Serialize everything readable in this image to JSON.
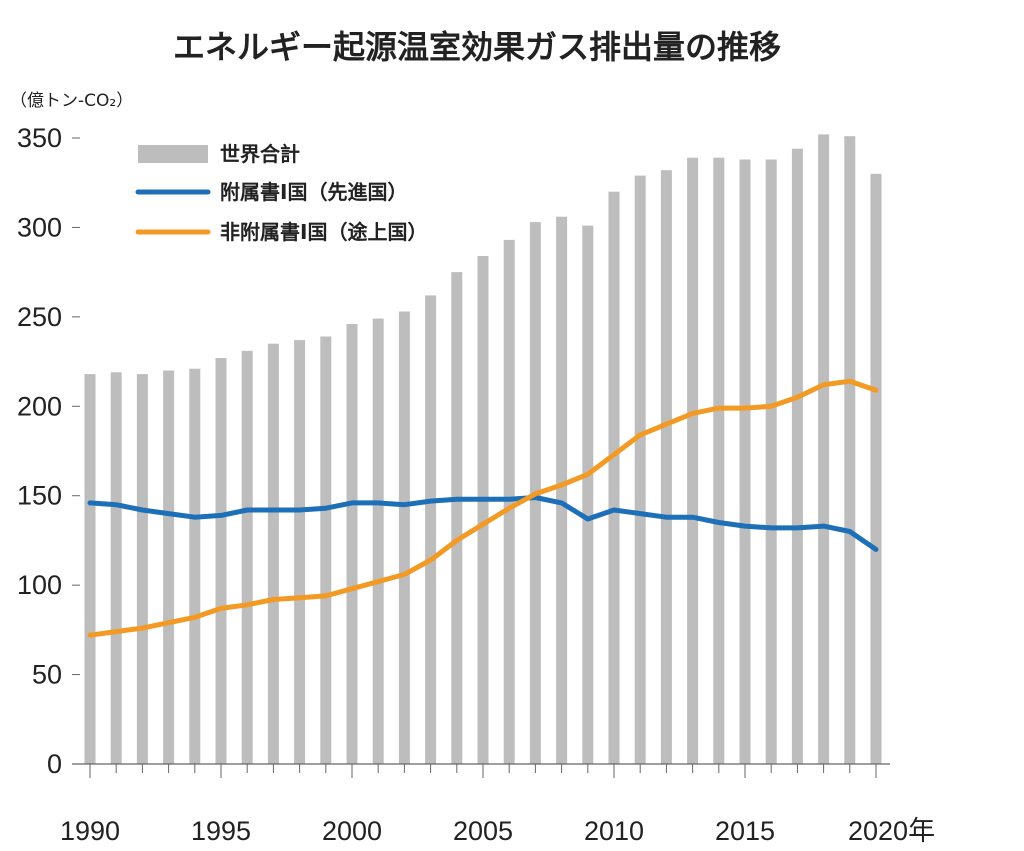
{
  "chart_data": {
    "type": "bar",
    "title": "エネルギー起源温室効果ガス排出量の推移",
    "unit_label": "（億トン-CO₂）",
    "x": [
      1990,
      1991,
      1992,
      1993,
      1994,
      1995,
      1996,
      1997,
      1998,
      1999,
      2000,
      2001,
      2002,
      2003,
      2004,
      2005,
      2006,
      2007,
      2008,
      2009,
      2010,
      2011,
      2012,
      2013,
      2014,
      2015,
      2016,
      2017,
      2018,
      2019,
      2020
    ],
    "x_tick_labels": [
      "1990",
      "1995",
      "2000",
      "2005",
      "2010",
      "2015",
      "2020年"
    ],
    "x_tick_values": [
      1990,
      1995,
      2000,
      2005,
      2010,
      2015,
      2020
    ],
    "y_tick_labels": [
      "0",
      "50",
      "100",
      "150",
      "200",
      "250",
      "300",
      "350"
    ],
    "ylim": [
      0,
      350
    ],
    "legend_placement": "top-left",
    "series": [
      {
        "name": "世界合計",
        "kind": "bar",
        "color": "#bdbdbd",
        "values": [
          218,
          219,
          218,
          220,
          221,
          227,
          231,
          235,
          237,
          239,
          246,
          249,
          253,
          262,
          275,
          284,
          293,
          303,
          306,
          301,
          320,
          329,
          332,
          339,
          339,
          338,
          338,
          344,
          352,
          351,
          330
        ]
      },
      {
        "name": "附属書Ⅰ国（先進国）",
        "kind": "line",
        "color": "#1d6fb8",
        "values": [
          146,
          145,
          142,
          140,
          138,
          139,
          142,
          142,
          142,
          143,
          146,
          146,
          145,
          147,
          148,
          148,
          148,
          149,
          146,
          137,
          142,
          140,
          138,
          138,
          135,
          133,
          132,
          132,
          133,
          130,
          120
        ]
      },
      {
        "name": "非附属書Ⅰ国（途上国）",
        "kind": "line",
        "color": "#f39a25",
        "values": [
          72,
          74,
          76,
          79,
          82,
          87,
          89,
          92,
          93,
          94,
          98,
          102,
          106,
          114,
          125,
          134,
          143,
          151,
          156,
          162,
          173,
          184,
          190,
          196,
          199,
          199,
          200,
          205,
          212,
          214,
          209
        ]
      }
    ],
    "grid": false
  }
}
